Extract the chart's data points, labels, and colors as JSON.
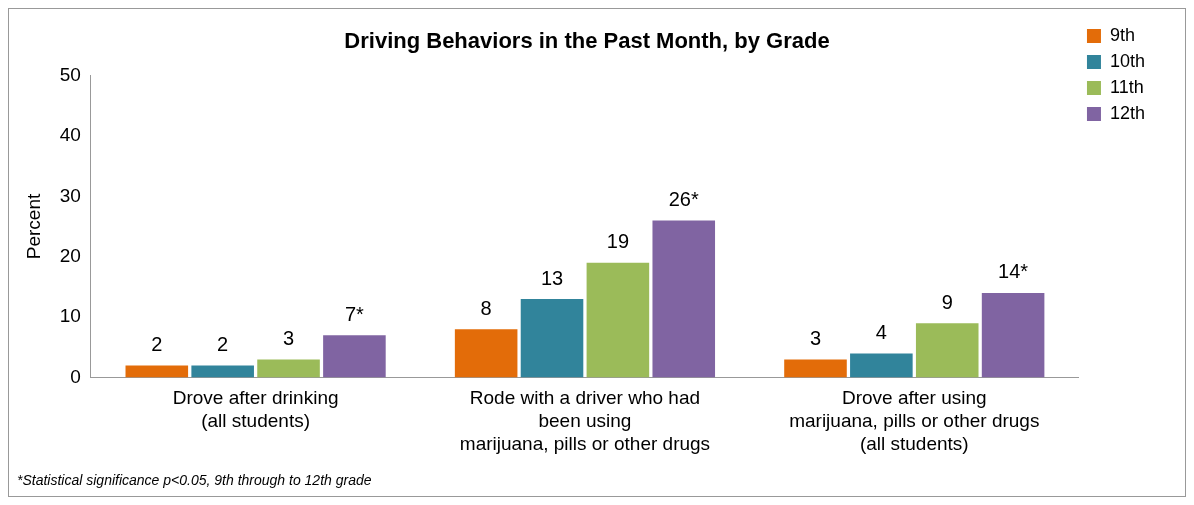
{
  "chart_data": {
    "type": "bar",
    "title": "Driving Behaviors in the Past Month, by Grade",
    "ylabel": "Percent",
    "categories": [
      "Drove after drinking\n(all students)",
      "Rode with a driver who had\nbeen using\nmarijuana, pills or other drugs",
      "Drove after using\nmarijuana, pills or other drugs\n(all students)"
    ],
    "series": [
      {
        "name": "9th",
        "color": "#e36c09",
        "values": [
          2,
          8,
          3
        ],
        "value_labels": [
          "2",
          "8",
          "3"
        ]
      },
      {
        "name": "10th",
        "color": "#31849b",
        "values": [
          2,
          13,
          4
        ],
        "value_labels": [
          "2",
          "13",
          "4"
        ]
      },
      {
        "name": "11th",
        "color": "#9bbb59",
        "values": [
          3,
          19,
          9
        ],
        "value_labels": [
          "3",
          "19",
          "9"
        ]
      },
      {
        "name": "12th",
        "color": "#8064a2",
        "values": [
          7,
          26,
          14
        ],
        "value_labels": [
          "7*",
          "26*",
          "14*"
        ]
      }
    ],
    "ylim": [
      0,
      50
    ],
    "yticks": [
      0,
      10,
      20,
      30,
      40,
      50
    ],
    "grid": false,
    "legend": "top right",
    "annotations": [
      "*Statistical significance p<0.05, 9th through to 12th grade"
    ]
  }
}
